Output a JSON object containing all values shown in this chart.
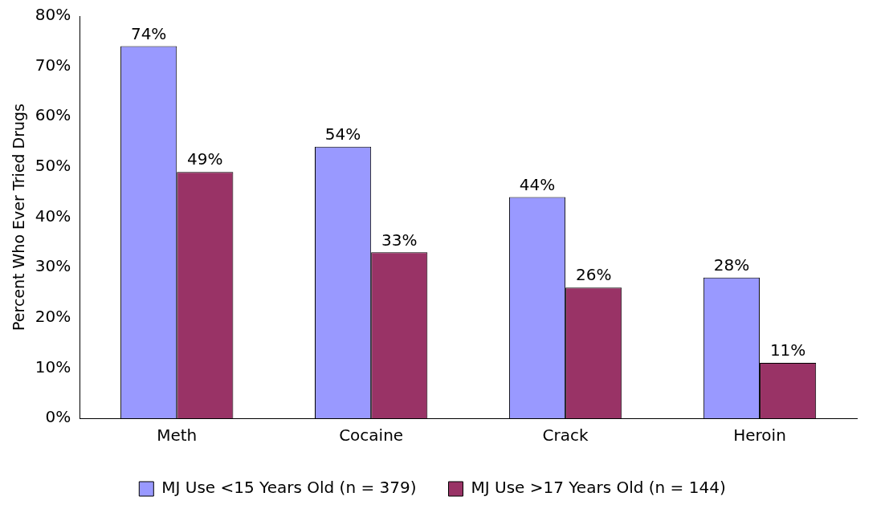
{
  "chart_data": {
    "type": "bar",
    "ylabel": "Percent Who Ever Tried Drugs",
    "categories": [
      "Meth",
      "Cocaine",
      "Crack",
      "Heroin"
    ],
    "series": [
      {
        "name": "MJ Use <15 Years Old (n = 379)",
        "color": "#9999ff",
        "values": [
          74,
          54,
          44,
          28
        ],
        "value_labels": [
          "74%",
          "54%",
          "44%",
          "28%"
        ]
      },
      {
        "name": "MJ Use >17 Years Old (n = 144)",
        "color": "#993366",
        "values": [
          49,
          33,
          26,
          11
        ],
        "value_labels": [
          "49%",
          "33%",
          "26%",
          "11%"
        ]
      }
    ],
    "ylim": [
      0,
      80
    ],
    "yticks": [
      {
        "value": 0,
        "label": "0%"
      },
      {
        "value": 10,
        "label": "10%"
      },
      {
        "value": 20,
        "label": "20%"
      },
      {
        "value": 30,
        "label": "30%"
      },
      {
        "value": 40,
        "label": "40%"
      },
      {
        "value": 50,
        "label": "50%"
      },
      {
        "value": 60,
        "label": "60%"
      },
      {
        "value": 70,
        "label": "70%"
      },
      {
        "value": 80,
        "label": "80%"
      }
    ],
    "grid": false,
    "legend": "bottom"
  }
}
